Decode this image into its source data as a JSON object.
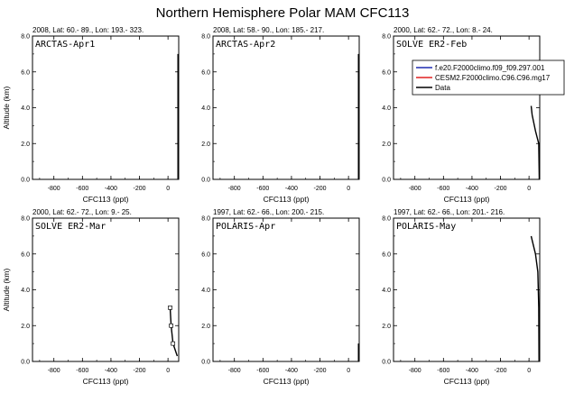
{
  "title": "Northern Hemisphere Polar MAM CFC113",
  "legend": {
    "entries": [
      {
        "label": "f.e20.F2000climo.f09_f09.297.001",
        "color": "#1f2bb0"
      },
      {
        "label": "CESM2.F2000climo.C96.C96.mg17",
        "color": "#e02020"
      },
      {
        "label": "Data",
        "color": "#000000"
      }
    ]
  },
  "chart_data": [
    {
      "type": "line",
      "header": "2008, Lat:  60.- 89., Lon: 193.- 323.",
      "label": "ARCTAS-Apr1",
      "xlabel": "CFC113 (ppt)",
      "ylabel": "Altitude (km)",
      "xlim": [
        -950,
        75
      ],
      "ylim": [
        0,
        8
      ],
      "xticks": [
        "-800",
        "-600",
        "-400",
        "-200",
        "0"
      ],
      "yticks": [
        "0.0",
        "2.0",
        "4.0",
        "6.0",
        "8.0"
      ],
      "series": [
        {
          "name": "Data",
          "points": [
            [
              70,
              0.0
            ],
            [
              70,
              7.0
            ]
          ]
        }
      ]
    },
    {
      "type": "line",
      "header": "2008, Lat:  58.- 90., Lon: 185.- 217.",
      "label": "ARCTAS-Apr2",
      "xlabel": "CFC113 (ppt)",
      "ylabel": "",
      "xlim": [
        -950,
        75
      ],
      "ylim": [
        0,
        8
      ],
      "xticks": [
        "-800",
        "-600",
        "-400",
        "-200",
        "0"
      ],
      "yticks": [
        "0.0",
        "2.0",
        "4.0",
        "6.0",
        "8.0"
      ],
      "series": [
        {
          "name": "Data",
          "points": [
            [
              70,
              0.0
            ],
            [
              70,
              7.0
            ]
          ]
        }
      ]
    },
    {
      "type": "line",
      "header": "2000, Lat: 62.- 72., Lon: 8.- 24.",
      "label": "SOLVE ER2-Feb",
      "xlabel": "CFC113 (ppt)",
      "ylabel": "",
      "xlim": [
        -950,
        75
      ],
      "ylim": [
        0,
        8
      ],
      "xticks": [
        "-800",
        "-600",
        "-400",
        "-200",
        "0"
      ],
      "yticks": [
        "0.0",
        "2.0",
        "4.0",
        "6.0",
        "8.0"
      ],
      "series": [
        {
          "name": "Data",
          "points": [
            [
              15,
              4.1
            ],
            [
              22,
              3.6
            ],
            [
              45,
              2.7
            ],
            [
              68,
              2.0
            ],
            [
              72,
              0.0
            ]
          ]
        }
      ]
    },
    {
      "type": "line",
      "header": "2000, Lat: 62.- 72., Lon: 9.- 25.",
      "label": "SOLVE ER2-Mar",
      "xlabel": "CFC113 (ppt)",
      "ylabel": "Altitude (km)",
      "xlim": [
        -950,
        75
      ],
      "ylim": [
        0,
        8
      ],
      "xticks": [
        "-800",
        "-600",
        "-400",
        "-200",
        "0"
      ],
      "yticks": [
        "0.0",
        "2.0",
        "4.0",
        "6.0",
        "8.0"
      ],
      "series": [
        {
          "name": "Data",
          "points": [
            [
              15,
              3.0
            ],
            [
              22,
              2.0
            ],
            [
              35,
              1.0
            ],
            [
              65,
              0.3
            ]
          ]
        }
      ],
      "markers": [
        [
          15,
          3.0
        ],
        [
          22,
          2.0
        ],
        [
          35,
          1.0
        ]
      ]
    },
    {
      "type": "line",
      "header": "1997, Lat: 62.- 66., Lon: 200.- 215.",
      "label": "POLARIS-Apr",
      "xlabel": "CFC113 (ppt)",
      "ylabel": "",
      "xlim": [
        -950,
        75
      ],
      "ylim": [
        0,
        8
      ],
      "xticks": [
        "-800",
        "-600",
        "-400",
        "-200",
        "0"
      ],
      "yticks": [
        "0.0",
        "2.0",
        "4.0",
        "6.0",
        "8.0"
      ],
      "series": [
        {
          "name": "Data",
          "points": [
            [
              70,
              0.0
            ],
            [
              70,
              1.0
            ]
          ]
        }
      ]
    },
    {
      "type": "line",
      "header": "1997, Lat: 62.- 66., Lon: 201.- 216.",
      "label": "POLARIS-May",
      "xlabel": "CFC113 (ppt)",
      "ylabel": "",
      "xlim": [
        -950,
        75
      ],
      "ylim": [
        0,
        8
      ],
      "xticks": [
        "-800",
        "-600",
        "-400",
        "-200",
        "0"
      ],
      "yticks": [
        "0.0",
        "2.0",
        "4.0",
        "6.0",
        "8.0"
      ],
      "series": [
        {
          "name": "Data",
          "points": [
            [
              15,
              7.0
            ],
            [
              45,
              6.0
            ],
            [
              62,
              5.0
            ],
            [
              68,
              3.0
            ],
            [
              70,
              0.0
            ]
          ]
        }
      ]
    }
  ]
}
